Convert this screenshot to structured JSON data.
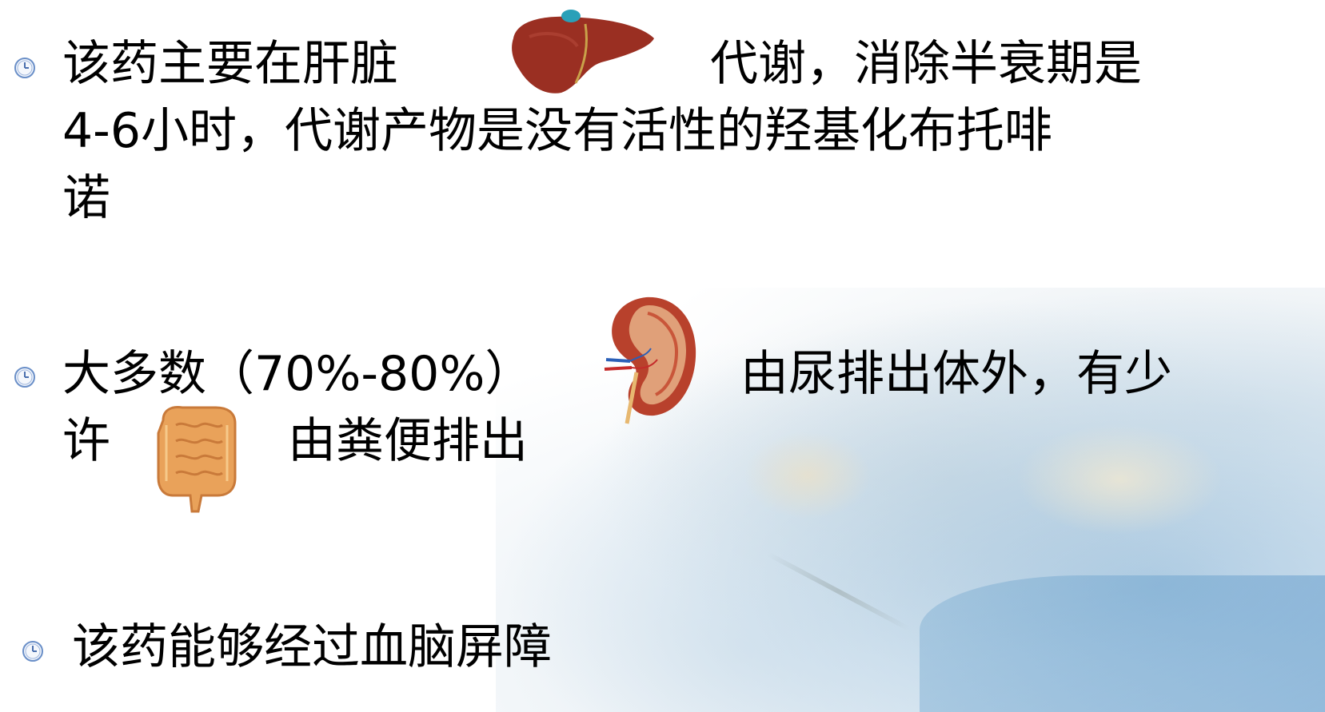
{
  "bullets": [
    {
      "line1_left": "该药主要在肝脏",
      "line1_right": "代谢，消除半衰期是",
      "line2": "4-6小时，代谢产物是没有活性的羟基化布托啡",
      "line3": "诺"
    },
    {
      "line1_left": "大多数（70%-80%）",
      "line1_right": "由尿排出体外，有少",
      "line2_left": "许",
      "line2_right": "由粪便排出"
    },
    {
      "line1": "该药能够经过血脑屏障"
    }
  ],
  "icons": {
    "bullet_icon": "clock-icon",
    "organ_1": "liver-icon",
    "organ_2": "kidney-icon",
    "organ_3": "intestine-icon"
  },
  "colors": {
    "text": "#000000",
    "bullet": "#6a8fc8",
    "liver": "#9a2f22",
    "kidney": "#b8412c",
    "intestine": "#e9a25a"
  }
}
